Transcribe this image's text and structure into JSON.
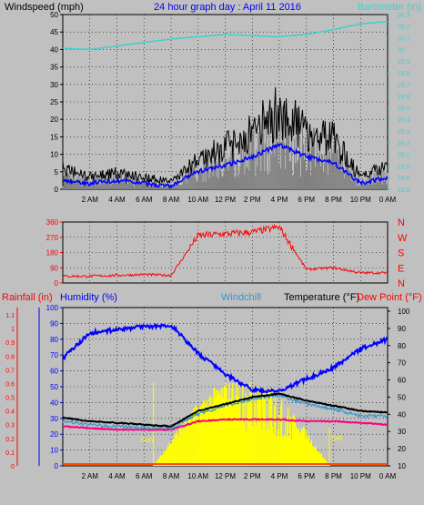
{
  "panel1": {
    "left_title": "Windspeed (mph)",
    "center_title": "24 hour graph day : April 11 2016",
    "right_title": "Barometer (in)",
    "wind_ticks": [
      "0",
      "5",
      "10",
      "15",
      "20",
      "25",
      "30",
      "35",
      "40",
      "45",
      "50"
    ],
    "baro_ticks": [
      "29.8",
      "29.9",
      "29.0",
      "29.1",
      "29.2",
      "29.3",
      "29.4",
      "29.5",
      "29.6",
      "29.7",
      "29.8",
      "29.9",
      "30",
      "30.1",
      "30.2",
      "30.3"
    ],
    "time_ticks": [
      "2 AM",
      "4 AM",
      "6 AM",
      "8 AM",
      "10 AM",
      "12 PM",
      "2 PM",
      "4 PM",
      "6 PM",
      "8 PM",
      "10 PM",
      "0 AM"
    ]
  },
  "panel2": {
    "dir_ticks": [
      "360",
      "270",
      "180",
      "90",
      "0"
    ],
    "compass": [
      "N",
      "W",
      "S",
      "E",
      "N"
    ]
  },
  "panel3": {
    "rain_title": "Rainfall (in)",
    "humidity_title": "Humidity (%)",
    "windchill_title": "Windchill",
    "temp_title": "Temperature (°F)",
    "dew_title": "Dew Point (°F)",
    "rain_ticks": [
      "0",
      "0.1",
      "0.2",
      "0.3",
      "0.4",
      "0.5",
      "0.6",
      "0.7",
      "0.8",
      "0.9",
      "1",
      "1.1"
    ],
    "humidity_ticks": [
      "0",
      "10",
      "20",
      "30",
      "40",
      "50",
      "60",
      "70",
      "80",
      "90",
      "100"
    ],
    "temp_ticks": [
      "10",
      "20",
      "30",
      "40",
      "50",
      "60",
      "70",
      "80",
      "90",
      "100"
    ],
    "sunrise_label": "Sun",
    "sunset_label": "Set"
  },
  "colors": {
    "background": "#c0c0c0",
    "plot_bg": "#c0c0c0",
    "wind_gust": "#000000",
    "wind_speed": "#808080",
    "wind_avg": "#0000ff",
    "barometer": "#40d0d0",
    "direction": "#ff0000",
    "humidity": "#0000ff",
    "temperature": "#000000",
    "windchill": "#3399cc",
    "dewpoint": "#ff0080",
    "solar": "#ffff00",
    "rain": "#ff0000",
    "frame": "#000000"
  },
  "chart_data": [
    {
      "type": "line",
      "title": "24 hour graph day : April 11 2016",
      "x": [
        "0 AM",
        "2 AM",
        "4 AM",
        "6 AM",
        "8 AM",
        "10 AM",
        "12 PM",
        "2 PM",
        "4 PM",
        "6 PM",
        "8 PM",
        "10 PM",
        "0 AM"
      ],
      "series": [
        {
          "name": "Windspeed (mph)",
          "values": [
            3,
            2,
            3,
            2,
            1,
            6,
            8,
            11,
            15,
            11,
            9,
            2,
            4
          ]
        },
        {
          "name": "Windspeed gust (mph)",
          "values": [
            5,
            3,
            4,
            3,
            2,
            7,
            10,
            14,
            19,
            14,
            12,
            3,
            6
          ]
        },
        {
          "name": "Barometer (in)",
          "values": [
            30.01,
            30.0,
            30.03,
            30.06,
            30.09,
            30.11,
            30.13,
            30.12,
            30.11,
            30.13,
            30.17,
            30.22,
            30.24
          ]
        }
      ],
      "ylim_left": [
        0,
        50
      ],
      "ylim_right": [
        28.8,
        30.3
      ]
    },
    {
      "type": "line",
      "title": "",
      "x": [
        "0 AM",
        "2 AM",
        "4 AM",
        "6 AM",
        "8 AM",
        "10 AM",
        "12 PM",
        "2 PM",
        "4 PM",
        "6 PM",
        "8 PM",
        "10 PM",
        "0 AM"
      ],
      "series": [
        {
          "name": "Wind direction (deg)",
          "values": [
            40,
            40,
            45,
            50,
            45,
            280,
            290,
            300,
            330,
            80,
            90,
            60,
            60
          ]
        }
      ],
      "ylim": [
        0,
        360
      ]
    },
    {
      "type": "line",
      "title": "",
      "x": [
        "0 AM",
        "2 AM",
        "4 AM",
        "6 AM",
        "8 AM",
        "10 AM",
        "12 PM",
        "2 PM",
        "4 PM",
        "6 PM",
        "8 PM",
        "10 PM",
        "0 AM"
      ],
      "series": [
        {
          "name": "Humidity (%)",
          "values": [
            68,
            84,
            86,
            88,
            89,
            71,
            58,
            48,
            47,
            55,
            62,
            74,
            80
          ]
        },
        {
          "name": "Temperature (°F)",
          "values": [
            38,
            36,
            35,
            34,
            33,
            42,
            46,
            50,
            52,
            48,
            45,
            42,
            41
          ]
        },
        {
          "name": "Windchill",
          "values": [
            36,
            34,
            33,
            32,
            32,
            40,
            45,
            49,
            51,
            46,
            43,
            39,
            39
          ]
        },
        {
          "name": "Dew Point (°F)",
          "values": [
            33,
            32,
            31,
            31,
            31,
            36,
            37,
            37,
            37,
            36,
            36,
            35,
            34
          ]
        },
        {
          "name": "Rainfall (in)",
          "values": [
            0,
            0,
            0,
            0,
            0,
            0,
            0,
            0,
            0,
            0,
            0,
            0,
            0
          ]
        }
      ],
      "ylim_humidity": [
        0,
        100
      ],
      "ylim_temp": [
        10,
        100
      ],
      "ylim_rain": [
        0,
        1.1
      ]
    }
  ]
}
